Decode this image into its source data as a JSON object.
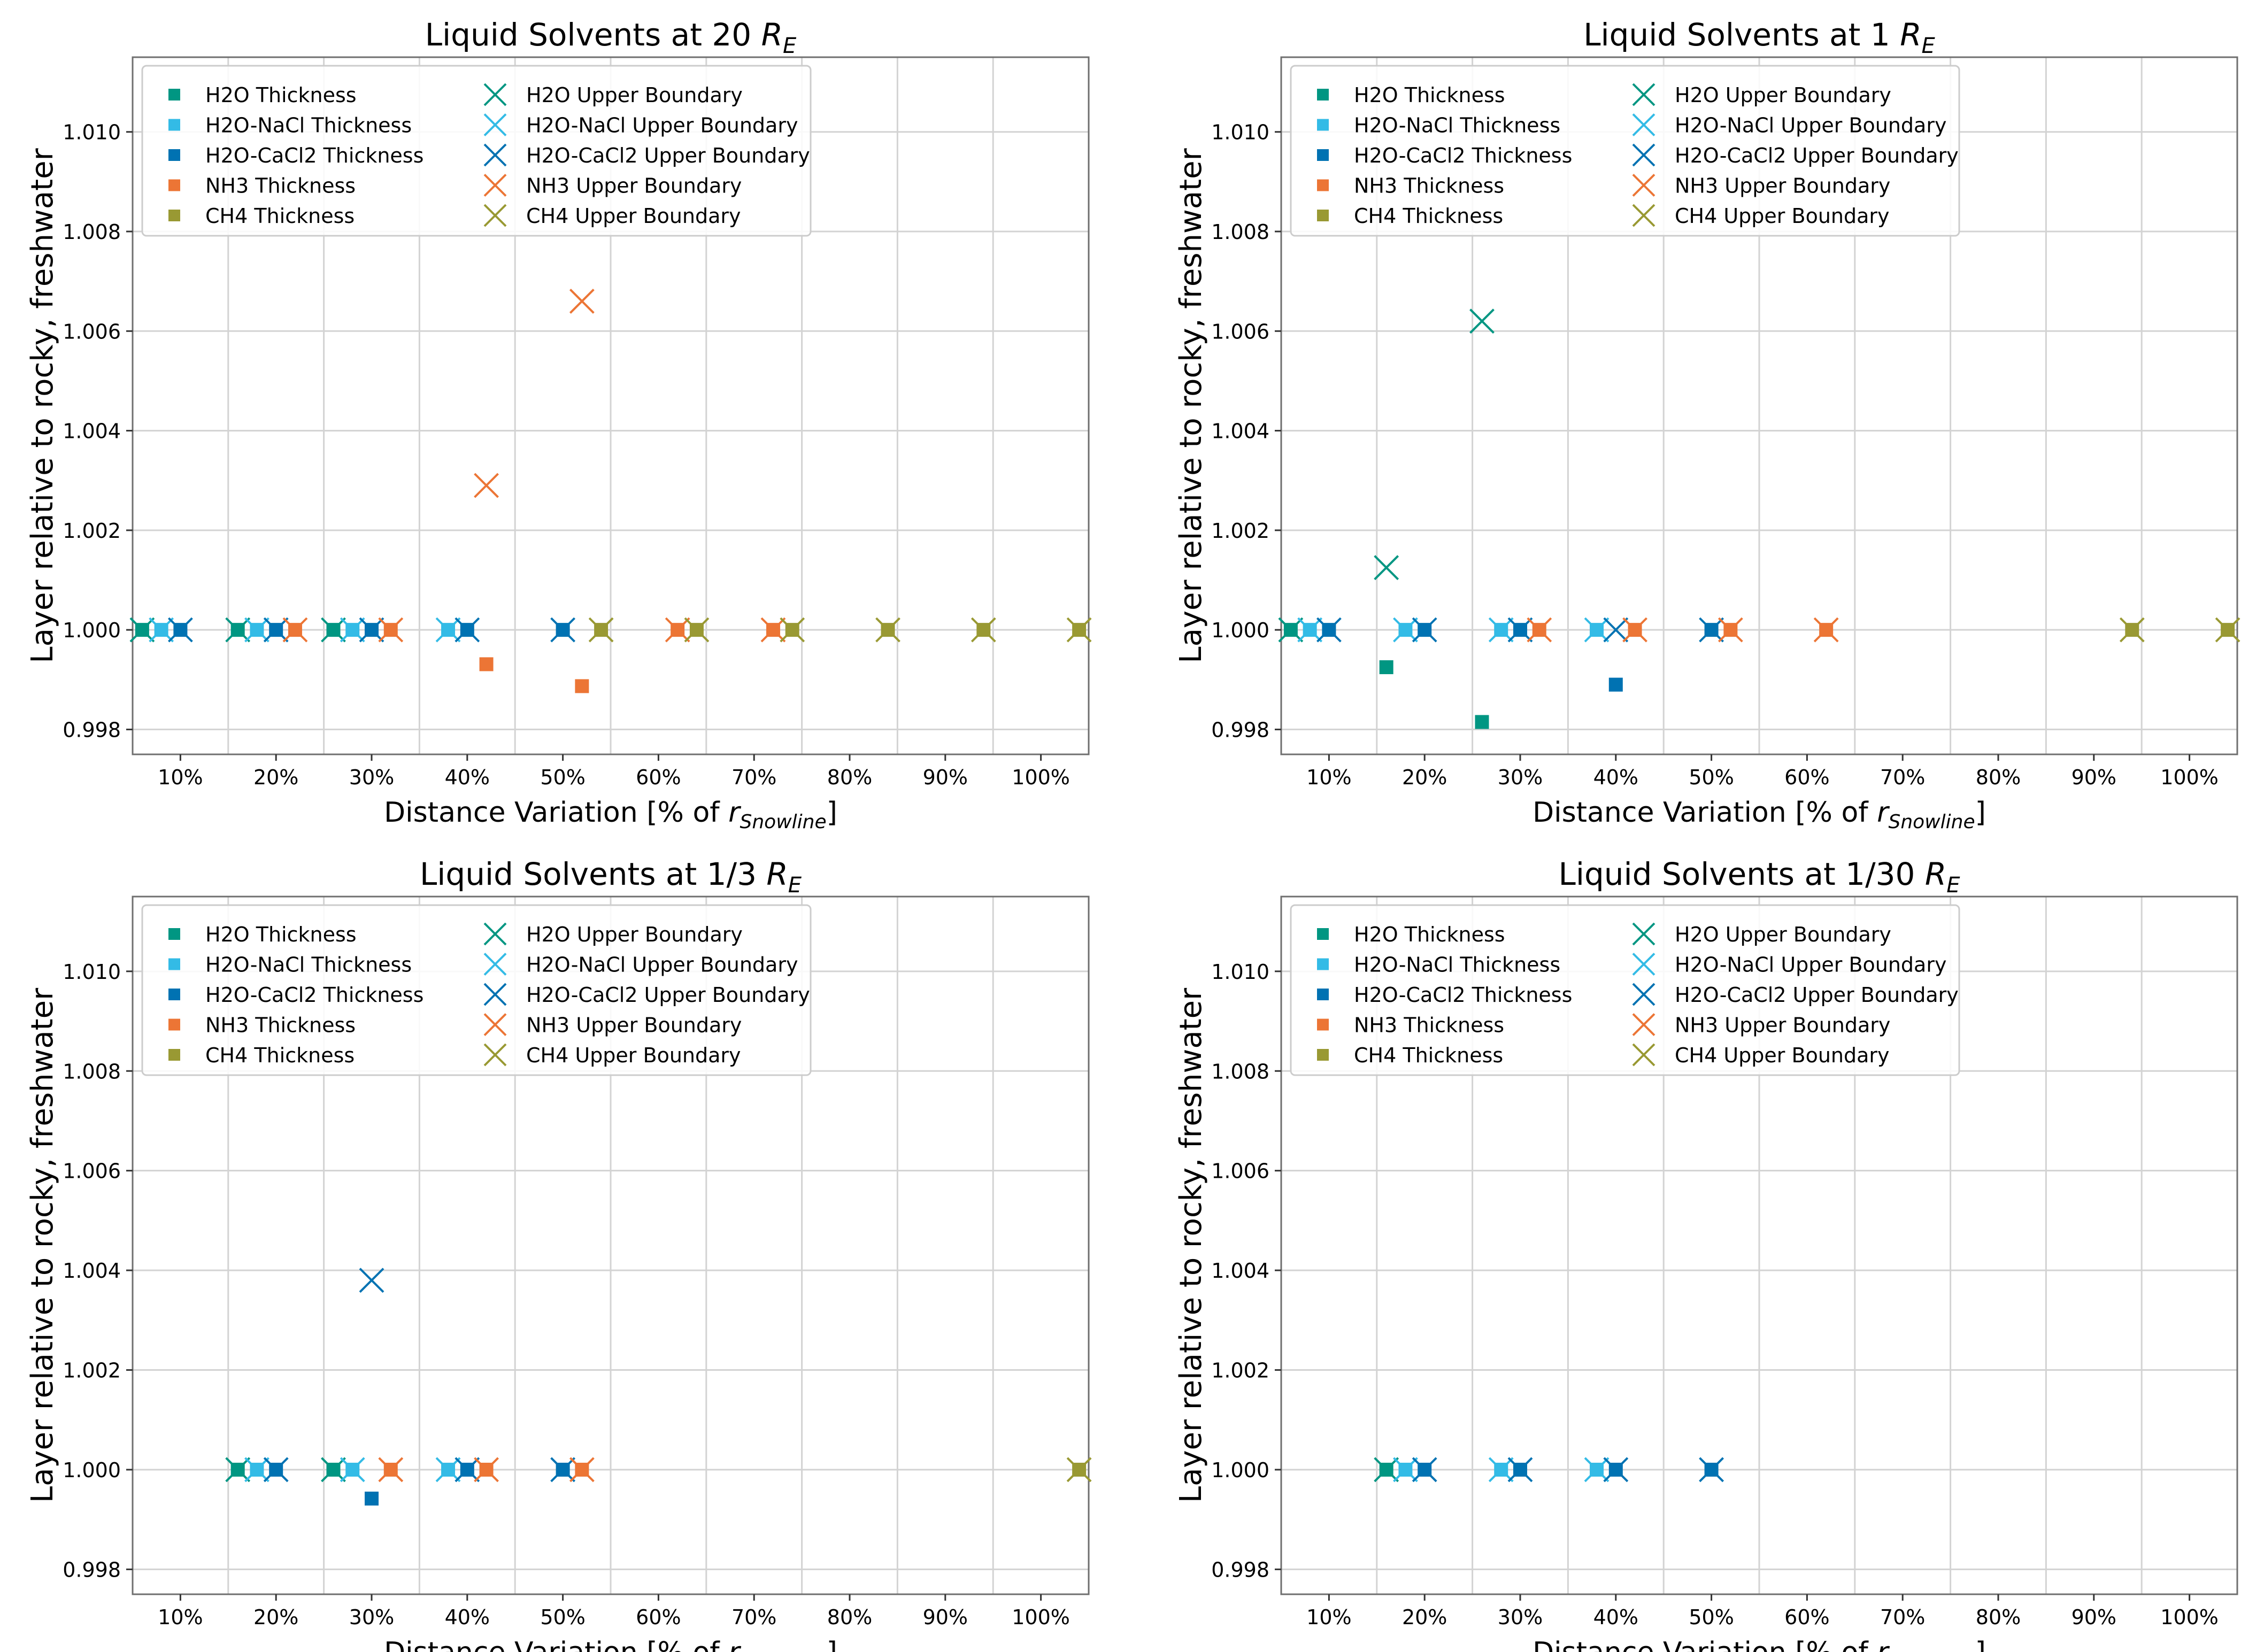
{
  "series_styles": [
    {
      "name": "H2O",
      "color": "#009682"
    },
    {
      "name": "H2O-NaCl",
      "color": "#33bbe6"
    },
    {
      "name": "H2O-CaCl2",
      "color": "#0072b2"
    },
    {
      "name": "NH3",
      "color": "#ec7535"
    },
    {
      "name": "CH4",
      "color": "#999933"
    }
  ],
  "axes_common": {
    "xlabel": "Distance Variation [% of ",
    "xlabel_var": "r",
    "xlabel_sub": "Snowline",
    "xlabel_end": "]",
    "ylabel": "Layer relative to rocky, freshwater",
    "xlim": [
      5,
      105
    ],
    "ylim": [
      0.9975,
      1.0115
    ],
    "xticks": [
      10,
      20,
      30,
      40,
      50,
      60,
      70,
      80,
      90,
      100
    ],
    "xtick_labels": [
      "10%",
      "20%",
      "30%",
      "40%",
      "50%",
      "60%",
      "70%",
      "80%",
      "90%",
      "100%"
    ],
    "yticks": [
      0.998,
      1.0,
      1.002,
      1.004,
      1.006,
      1.008,
      1.01
    ],
    "ytick_labels": [
      "0.998",
      "1.000",
      "1.002",
      "1.004",
      "1.006",
      "1.008",
      "1.010"
    ],
    "xgrid": [
      5,
      15,
      25,
      35,
      45,
      55,
      65,
      75,
      85,
      95,
      105
    ],
    "ygrid": [
      0.998,
      1.0,
      1.002,
      1.004,
      1.006,
      1.008,
      1.01
    ],
    "legend_position": "upper-left",
    "legend_entries": [
      "H2O Thickness",
      "H2O-NaCl Thickness",
      "H2O-CaCl2 Thickness",
      "NH3 Thickness",
      "CH4 Thickness",
      "H2O Upper Boundary",
      "H2O-NaCl Upper Boundary",
      "H2O-CaCl2 Upper Boundary",
      "NH3 Upper Boundary",
      "CH4 Upper Boundary"
    ]
  },
  "chart_data": [
    {
      "type": "scatter",
      "title": "Liquid Solvents at 20 ",
      "title_sym": "R",
      "title_sub": "E",
      "series": [
        {
          "name": "H2O Thickness",
          "marker": "square",
          "x": [
            6,
            16,
            26
          ],
          "y": [
            1.0,
            1.0,
            1.0
          ]
        },
        {
          "name": "H2O-NaCl Thickness",
          "marker": "square",
          "x": [
            8,
            18,
            28,
            38
          ],
          "y": [
            1.0,
            1.0,
            1.0,
            1.0
          ]
        },
        {
          "name": "H2O-CaCl2 Thickness",
          "marker": "square",
          "x": [
            10,
            20,
            30,
            40,
            50
          ],
          "y": [
            1.0,
            1.0,
            1.0,
            1.0,
            1.0
          ]
        },
        {
          "name": "NH3 Thickness",
          "marker": "square",
          "x": [
            22,
            32,
            42,
            52,
            62,
            72
          ],
          "y": [
            1.0,
            1.0,
            0.99931,
            0.99887,
            1.0,
            1.0
          ]
        },
        {
          "name": "CH4 Thickness",
          "marker": "square",
          "x": [
            54,
            64,
            74,
            84,
            94,
            104
          ],
          "y": [
            1.0,
            1.0,
            1.0,
            1.0,
            1.0,
            1.0
          ]
        },
        {
          "name": "H2O Upper Boundary",
          "marker": "x",
          "x": [
            6,
            16,
            26
          ],
          "y": [
            1.0,
            1.0,
            1.0
          ]
        },
        {
          "name": "H2O-NaCl Upper Boundary",
          "marker": "x",
          "x": [
            8,
            18,
            28,
            38
          ],
          "y": [
            1.0,
            1.0,
            1.0,
            1.0
          ]
        },
        {
          "name": "H2O-CaCl2 Upper Boundary",
          "marker": "x",
          "x": [
            10,
            20,
            30,
            40,
            50
          ],
          "y": [
            1.0,
            1.0,
            1.0,
            1.0,
            1.0
          ]
        },
        {
          "name": "NH3 Upper Boundary",
          "marker": "x",
          "x": [
            22,
            32,
            42,
            52,
            62,
            72
          ],
          "y": [
            1.0,
            1.0,
            1.0029,
            1.0066,
            1.0,
            1.0
          ]
        },
        {
          "name": "CH4 Upper Boundary",
          "marker": "x",
          "x": [
            54,
            64,
            74,
            84,
            94,
            104
          ],
          "y": [
            1.0,
            1.0,
            1.0,
            1.0,
            1.0,
            1.0
          ]
        }
      ]
    },
    {
      "type": "scatter",
      "title": "Liquid Solvents at 1 ",
      "title_sym": "R",
      "title_sub": "E",
      "series": [
        {
          "name": "H2O Thickness",
          "marker": "square",
          "x": [
            6,
            16,
            26
          ],
          "y": [
            1.0,
            0.99925,
            0.99815
          ]
        },
        {
          "name": "H2O-NaCl Thickness",
          "marker": "square",
          "x": [
            8,
            18,
            28,
            38
          ],
          "y": [
            1.0,
            1.0,
            1.0,
            1.0
          ]
        },
        {
          "name": "H2O-CaCl2 Thickness",
          "marker": "square",
          "x": [
            10,
            20,
            30,
            40,
            50
          ],
          "y": [
            1.0,
            1.0,
            1.0,
            0.9989,
            1.0
          ]
        },
        {
          "name": "NH3 Thickness",
          "marker": "square",
          "x": [
            32,
            42,
            52,
            62
          ],
          "y": [
            1.0,
            1.0,
            1.0,
            1.0
          ]
        },
        {
          "name": "CH4 Thickness",
          "marker": "square",
          "x": [
            94,
            104
          ],
          "y": [
            1.0,
            1.0
          ]
        },
        {
          "name": "H2O Upper Boundary",
          "marker": "x",
          "x": [
            6,
            16,
            26
          ],
          "y": [
            1.0,
            1.00125,
            1.0062
          ]
        },
        {
          "name": "H2O-NaCl Upper Boundary",
          "marker": "x",
          "x": [
            8,
            18,
            28,
            38
          ],
          "y": [
            1.0,
            1.0,
            1.0,
            1.0
          ]
        },
        {
          "name": "H2O-CaCl2 Upper Boundary",
          "marker": "x",
          "x": [
            10,
            20,
            30,
            40,
            50
          ],
          "y": [
            1.0,
            1.0,
            1.0,
            1.0,
            1.0
          ]
        },
        {
          "name": "NH3 Upper Boundary",
          "marker": "x",
          "x": [
            32,
            42,
            52,
            62
          ],
          "y": [
            1.0,
            1.0,
            1.0,
            1.0
          ]
        },
        {
          "name": "CH4 Upper Boundary",
          "marker": "x",
          "x": [
            94,
            104
          ],
          "y": [
            1.0,
            1.0
          ]
        }
      ]
    },
    {
      "type": "scatter",
      "title": "Liquid Solvents at 1/3 ",
      "title_sym": "R",
      "title_sub": "E",
      "series": [
        {
          "name": "H2O Thickness",
          "marker": "square",
          "x": [
            16,
            26
          ],
          "y": [
            1.0,
            1.0
          ]
        },
        {
          "name": "H2O-NaCl Thickness",
          "marker": "square",
          "x": [
            18,
            28,
            38
          ],
          "y": [
            1.0,
            1.0,
            1.0
          ]
        },
        {
          "name": "H2O-CaCl2 Thickness",
          "marker": "square",
          "x": [
            20,
            30,
            40,
            50
          ],
          "y": [
            1.0,
            0.99942,
            1.0,
            1.0
          ]
        },
        {
          "name": "NH3 Thickness",
          "marker": "square",
          "x": [
            32,
            42,
            52
          ],
          "y": [
            1.0,
            1.0,
            1.0
          ]
        },
        {
          "name": "CH4 Thickness",
          "marker": "square",
          "x": [
            104
          ],
          "y": [
            1.0
          ]
        },
        {
          "name": "H2O Upper Boundary",
          "marker": "x",
          "x": [
            16,
            26
          ],
          "y": [
            1.0,
            1.0
          ]
        },
        {
          "name": "H2O-NaCl Upper Boundary",
          "marker": "x",
          "x": [
            18,
            28,
            38
          ],
          "y": [
            1.0,
            1.0,
            1.0
          ]
        },
        {
          "name": "H2O-CaCl2 Upper Boundary",
          "marker": "x",
          "x": [
            20,
            30,
            40,
            50
          ],
          "y": [
            1.0,
            1.0038,
            1.0,
            1.0
          ]
        },
        {
          "name": "NH3 Upper Boundary",
          "marker": "x",
          "x": [
            32,
            42,
            52
          ],
          "y": [
            1.0,
            1.0,
            1.0
          ]
        },
        {
          "name": "CH4 Upper Boundary",
          "marker": "x",
          "x": [
            104
          ],
          "y": [
            1.0
          ]
        }
      ]
    },
    {
      "type": "scatter",
      "title": "Liquid Solvents at 1/30 ",
      "title_sym": "R",
      "title_sub": "E",
      "series": [
        {
          "name": "H2O Thickness",
          "marker": "square",
          "x": [
            16
          ],
          "y": [
            1.0
          ]
        },
        {
          "name": "H2O-NaCl Thickness",
          "marker": "square",
          "x": [
            18,
            28,
            38
          ],
          "y": [
            1.0,
            1.0,
            1.0
          ]
        },
        {
          "name": "H2O-CaCl2 Thickness",
          "marker": "square",
          "x": [
            20,
            30,
            40,
            50
          ],
          "y": [
            1.0,
            1.0,
            1.0,
            1.0
          ]
        },
        {
          "name": "NH3 Thickness",
          "marker": "square",
          "x": [],
          "y": []
        },
        {
          "name": "CH4 Thickness",
          "marker": "square",
          "x": [],
          "y": []
        },
        {
          "name": "H2O Upper Boundary",
          "marker": "x",
          "x": [
            16
          ],
          "y": [
            1.0
          ]
        },
        {
          "name": "H2O-NaCl Upper Boundary",
          "marker": "x",
          "x": [
            18,
            28,
            38
          ],
          "y": [
            1.0,
            1.0,
            1.0
          ]
        },
        {
          "name": "H2O-CaCl2 Upper Boundary",
          "marker": "x",
          "x": [
            20,
            30,
            40,
            50
          ],
          "y": [
            1.0,
            1.0,
            1.0,
            1.0
          ]
        },
        {
          "name": "NH3 Upper Boundary",
          "marker": "x",
          "x": [],
          "y": []
        },
        {
          "name": "CH4 Upper Boundary",
          "marker": "x",
          "x": [],
          "y": []
        }
      ]
    }
  ]
}
